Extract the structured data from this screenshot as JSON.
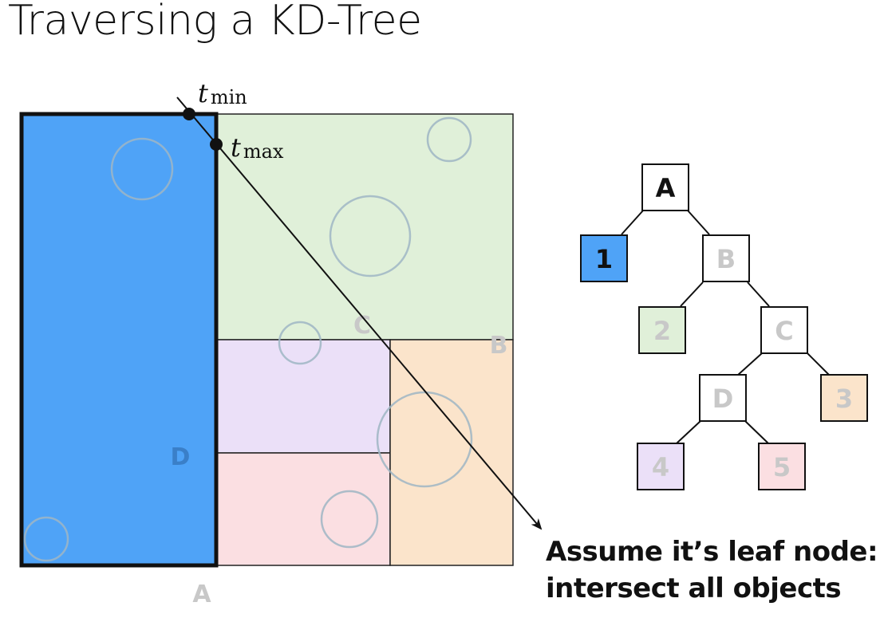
{
  "title": "Traversing a KD-Tree",
  "ray": {
    "tmin_label": {
      "t": "t",
      "sub": "min"
    },
    "tmax_label": {
      "t": "t",
      "sub": "max"
    }
  },
  "regions": {
    "A": "A",
    "B": "B",
    "C": "C",
    "D": "D"
  },
  "tree": {
    "nodes": {
      "A": "A",
      "B": "B",
      "C": "C",
      "D": "D",
      "leaf1": "1",
      "leaf2": "2",
      "leaf3": "3",
      "leaf4": "4",
      "leaf5": "5"
    }
  },
  "caption": {
    "line1": "Assume it’s leaf node:",
    "line2": "intersect all objects"
  },
  "colors": {
    "leaf1": "#4fa3f7",
    "leaf2": "#e0f0d9",
    "leaf3": "#fbe4cb",
    "leaf4": "#ebe0f8",
    "leaf5": "#fbdfe2",
    "faded_text": "#c8c8c8",
    "circle_stroke": "#9fb6c4"
  }
}
